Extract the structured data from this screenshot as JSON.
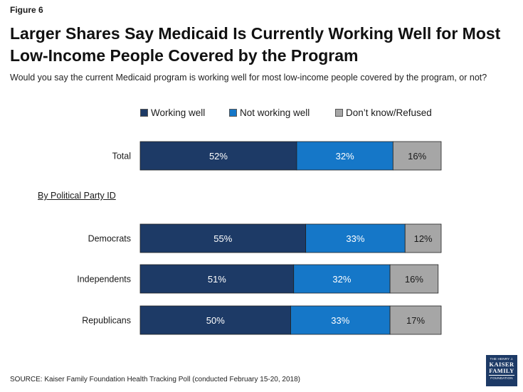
{
  "figure_label": "Figure 6",
  "title": "Larger Shares Say Medicaid Is Currently Working Well for Most Low-Income People Covered by the Program",
  "subtitle": "Would you say the current Medicaid program is working well for most low-income people covered by the program, or not?",
  "section_label": "By Political Party ID",
  "source": "SOURCE: Kaiser Family Foundation Health Tracking Poll (conducted February 15-20, 2018)",
  "logo": {
    "line1": "THE HENRY J.",
    "line2": "KAISER",
    "line3": "FAMILY",
    "line4": "FOUNDATION"
  },
  "colors": {
    "working_well": "#1d3a66",
    "not_working_well": "#1577c8",
    "dont_know": "#a6a6a6"
  },
  "chart_data": {
    "type": "bar",
    "orientation": "horizontal",
    "stacked": true,
    "title": "Larger Shares Say Medicaid Is Currently Working Well for Most Low-Income People Covered by the Program",
    "xlabel": "",
    "ylabel": "",
    "xlim": [
      0,
      100
    ],
    "grid": false,
    "legend_position": "top",
    "categories": [
      "Total",
      "Democrats",
      "Independents",
      "Republicans"
    ],
    "series": [
      {
        "name": "Working well",
        "values": [
          52,
          55,
          51,
          50
        ],
        "labels": [
          "52%",
          "55%",
          "51%",
          "50%"
        ]
      },
      {
        "name": "Not working well",
        "values": [
          32,
          33,
          32,
          33
        ],
        "labels": [
          "32%",
          "33%",
          "32%",
          "33%"
        ]
      },
      {
        "name": "Don’t know/Refused",
        "values": [
          16,
          12,
          16,
          17
        ],
        "labels": [
          "16%",
          "12%",
          "16%",
          "17%"
        ]
      }
    ]
  }
}
